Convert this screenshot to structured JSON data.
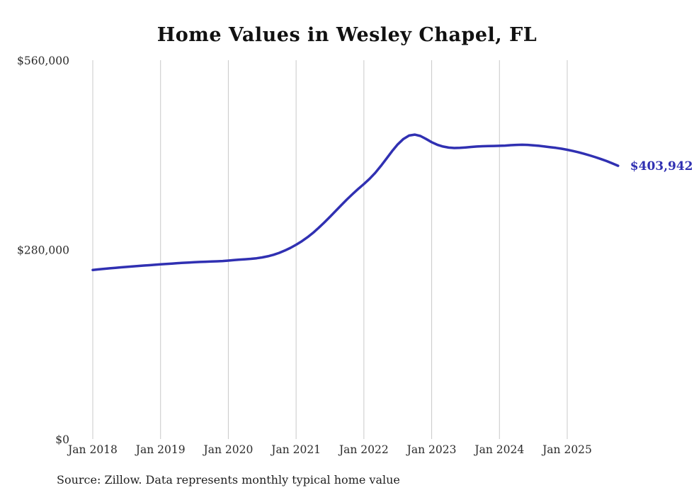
{
  "header": {
    "title": "Home Values in Wesley Chapel, FL"
  },
  "footer": {
    "source": "Source: Zillow. Data represents monthly typical home value"
  },
  "chart_data": {
    "type": "line",
    "title": "Home Values in Wesley Chapel, FL",
    "series_name": "Monthly typical home value",
    "start_month": "Jan 2018",
    "end_month": "Oct 2025",
    "end_label": "$403,942",
    "end_value": 403942,
    "x_tick_labels": [
      "Jan 2018",
      "Jan 2019",
      "Jan 2020",
      "Jan 2021",
      "Jan 2022",
      "Jan 2023",
      "Jan 2024",
      "Jan 2025"
    ],
    "y_ticks": [
      {
        "value": 0,
        "label": "$0"
      },
      {
        "value": 280000,
        "label": "$280,000"
      },
      {
        "value": 560000,
        "label": "$560,000"
      }
    ],
    "ylim": [
      0,
      560000
    ],
    "grid": "vertical-only",
    "legend": "none",
    "colors": {
      "line": "#3030b2",
      "grid": "#c8c8c8",
      "axis_text": "#2b2b2b",
      "end_label": "#3030b2"
    },
    "values": [
      250000,
      250800,
      251600,
      252400,
      253100,
      253800,
      254500,
      255200,
      255800,
      256400,
      257000,
      257600,
      258200,
      258800,
      259400,
      260000,
      260500,
      261000,
      261400,
      261800,
      262100,
      262400,
      262700,
      263200,
      263800,
      264500,
      265200,
      265800,
      266400,
      267200,
      268500,
      270200,
      272400,
      275200,
      278600,
      282600,
      287200,
      292400,
      298200,
      304800,
      312200,
      320200,
      328600,
      337200,
      345800,
      354200,
      362200,
      369800,
      377000,
      384600,
      393400,
      403600,
      414600,
      425600,
      435600,
      443600,
      448600,
      450000,
      448000,
      443600,
      438800,
      435000,
      432400,
      430800,
      430200,
      430400,
      431000,
      431800,
      432400,
      432800,
      433000,
      433200,
      433400,
      433800,
      434400,
      434800,
      435000,
      434800,
      434200,
      433400,
      432400,
      431400,
      430400,
      429200,
      427600,
      425800,
      423800,
      421600,
      419200,
      416600,
      413800,
      410800,
      407400,
      403942
    ]
  }
}
